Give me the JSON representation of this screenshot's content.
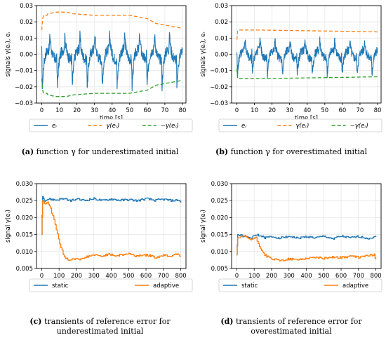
{
  "chart_data": [
    {
      "type": "line",
      "panel_label": "(a)",
      "caption": "function γ for underestimated initial",
      "xlabel": "time [s]",
      "ylabel": "signals γ(eᵣ), eᵣ",
      "xlim": [
        -3,
        82
      ],
      "ylim": [
        -0.03,
        0.03
      ],
      "xticks": [
        0,
        10,
        20,
        30,
        40,
        50,
        60,
        70,
        80
      ],
      "yticks": [
        -0.03,
        -0.02,
        -0.01,
        0.0,
        0.01,
        0.02,
        0.03
      ],
      "ytick_labels": [
        "−0.03",
        "−0.02",
        "−0.01",
        "0.00",
        "0.01",
        "0.02",
        "0.03"
      ],
      "grid": true,
      "legend_position": "below",
      "series": [
        {
          "name": "eᵣ",
          "color": "#1f77b4",
          "style": "solid",
          "kind": "oscillation",
          "period": 8.5,
          "x_start": 0,
          "x_end": 80,
          "peak_high": 0.012,
          "peak_low": -0.021,
          "base_high": 0.006,
          "base_low": -0.006
        },
        {
          "name": "γ(eᵣ)",
          "color": "#ff7f0e",
          "style": "dashed",
          "points": [
            [
              0,
              0.015
            ],
            [
              0.5,
              0.022
            ],
            [
              1,
              0.024
            ],
            [
              3,
              0.024
            ],
            [
              3.5,
              0.025
            ],
            [
              8,
              0.026
            ],
            [
              14,
              0.026
            ],
            [
              18,
              0.025
            ],
            [
              30,
              0.024
            ],
            [
              50,
              0.024
            ],
            [
              60,
              0.022
            ],
            [
              65,
              0.019
            ],
            [
              70,
              0.018
            ],
            [
              75,
              0.017
            ],
            [
              80,
              0.016
            ]
          ]
        },
        {
          "name": "−γ(eᵣ)",
          "color": "#2ca02c",
          "style": "dashed",
          "points": [
            [
              0,
              -0.015
            ],
            [
              0.5,
              -0.022
            ],
            [
              1,
              -0.024
            ],
            [
              3,
              -0.024
            ],
            [
              3.5,
              -0.025
            ],
            [
              8,
              -0.026
            ],
            [
              14,
              -0.026
            ],
            [
              18,
              -0.025
            ],
            [
              30,
              -0.024
            ],
            [
              50,
              -0.024
            ],
            [
              60,
              -0.022
            ],
            [
              65,
              -0.019
            ],
            [
              70,
              -0.018
            ],
            [
              75,
              -0.017
            ],
            [
              80,
              -0.016
            ]
          ]
        }
      ]
    },
    {
      "type": "line",
      "panel_label": "(b)",
      "caption": "function γ for overestimated initial",
      "xlabel": "time [s]",
      "ylabel": "signals γ(eᵣ), eᵣ",
      "xlim": [
        -3,
        82
      ],
      "ylim": [
        -0.03,
        0.03
      ],
      "xticks": [
        0,
        10,
        20,
        30,
        40,
        50,
        60,
        70,
        80
      ],
      "yticks": [
        -0.03,
        -0.02,
        -0.01,
        0.0,
        0.01,
        0.02,
        0.03
      ],
      "ytick_labels": [
        "−0.03",
        "−0.02",
        "−0.01",
        "0.00",
        "0.01",
        "0.02",
        "0.03"
      ],
      "grid": true,
      "legend_position": "below",
      "series": [
        {
          "name": "eᵣ",
          "color": "#1f77b4",
          "style": "solid",
          "kind": "oscillation",
          "period": 8.5,
          "x_start": 0,
          "x_end": 80,
          "peak_high": 0.009,
          "peak_low": -0.013,
          "base_high": 0.005,
          "base_low": -0.005
        },
        {
          "name": "γ(eᵣ)",
          "color": "#ff7f0e",
          "style": "dashed",
          "points": [
            [
              0,
              0.009
            ],
            [
              0.5,
              0.015
            ],
            [
              10,
              0.015
            ],
            [
              40,
              0.0145
            ],
            [
              60,
              0.0142
            ],
            [
              80,
              0.0138
            ]
          ]
        },
        {
          "name": "−γ(eᵣ)",
          "color": "#2ca02c",
          "style": "dashed",
          "points": [
            [
              0,
              -0.009
            ],
            [
              0.5,
              -0.015
            ],
            [
              10,
              -0.015
            ],
            [
              40,
              -0.0145
            ],
            [
              60,
              -0.0142
            ],
            [
              80,
              -0.0138
            ]
          ]
        }
      ]
    },
    {
      "type": "line",
      "panel_label": "(c)",
      "caption": [
        "transients of reference error for",
        "underestimated initial"
      ],
      "xlabel": "time [s]",
      "ylabel": "signal γ(eᵣ)",
      "xlim": [
        -30,
        830
      ],
      "ylim": [
        0.005,
        0.03
      ],
      "xticks": [
        0,
        100,
        200,
        300,
        400,
        500,
        600,
        700,
        800
      ],
      "yticks": [
        0.005,
        0.01,
        0.015,
        0.02,
        0.025,
        0.03
      ],
      "ytick_labels": [
        "0.005",
        "0.010",
        "0.015",
        "0.020",
        "0.025",
        "0.030"
      ],
      "grid": true,
      "legend_position": "below",
      "series": [
        {
          "name": "static",
          "color": "#1f77b4",
          "style": "solid",
          "points": [
            [
              0,
              0.015
            ],
            [
              5,
              0.0262
            ],
            [
              15,
              0.025
            ],
            [
              40,
              0.0255
            ],
            [
              80,
              0.0252
            ],
            [
              120,
              0.0256
            ],
            [
              160,
              0.025
            ],
            [
              200,
              0.0254
            ],
            [
              250,
              0.0251
            ],
            [
              300,
              0.0256
            ],
            [
              350,
              0.025
            ],
            [
              400,
              0.0255
            ],
            [
              450,
              0.0251
            ],
            [
              500,
              0.0253
            ],
            [
              550,
              0.025
            ],
            [
              600,
              0.0256
            ],
            [
              650,
              0.0251
            ],
            [
              700,
              0.0254
            ],
            [
              750,
              0.025
            ],
            [
              790,
              0.0252
            ],
            [
              800,
              0.0244
            ]
          ]
        },
        {
          "name": "adaptive",
          "color": "#ff7f0e",
          "style": "solid",
          "points": [
            [
              0,
              0.015
            ],
            [
              5,
              0.025
            ],
            [
              20,
              0.024
            ],
            [
              35,
              0.0248
            ],
            [
              50,
              0.0225
            ],
            [
              70,
              0.0195
            ],
            [
              90,
              0.015
            ],
            [
              110,
              0.011
            ],
            [
              130,
              0.0085
            ],
            [
              150,
              0.0075
            ],
            [
              175,
              0.0077
            ],
            [
              200,
              0.008
            ],
            [
              230,
              0.0077
            ],
            [
              260,
              0.0085
            ],
            [
              300,
              0.009
            ],
            [
              340,
              0.0086
            ],
            [
              380,
              0.0092
            ],
            [
              420,
              0.0088
            ],
            [
              460,
              0.009
            ],
            [
              500,
              0.0094
            ],
            [
              540,
              0.0087
            ],
            [
              580,
              0.009
            ],
            [
              620,
              0.0088
            ],
            [
              660,
              0.0082
            ],
            [
              700,
              0.009
            ],
            [
              740,
              0.0086
            ],
            [
              780,
              0.0095
            ],
            [
              800,
              0.0085
            ]
          ]
        }
      ]
    },
    {
      "type": "line",
      "panel_label": "(d)",
      "caption": [
        "transients of reference error for",
        "overestimated initial"
      ],
      "xlabel": "time [s]",
      "ylabel": "signal γ(eᵣ)",
      "xlim": [
        -30,
        830
      ],
      "ylim": [
        0.005,
        0.03
      ],
      "xticks": [
        0,
        100,
        200,
        300,
        400,
        500,
        600,
        700,
        800
      ],
      "yticks": [
        0.005,
        0.01,
        0.015,
        0.02,
        0.025,
        0.03
      ],
      "ytick_labels": [
        "0.005",
        "0.010",
        "0.015",
        "0.020",
        "0.025",
        "0.030"
      ],
      "grid": true,
      "legend_position": "below",
      "series": [
        {
          "name": "static",
          "color": "#1f77b4",
          "style": "solid",
          "points": [
            [
              0,
              0.009
            ],
            [
              5,
              0.015
            ],
            [
              40,
              0.0145
            ],
            [
              80,
              0.014
            ],
            [
              120,
              0.015
            ],
            [
              160,
              0.014
            ],
            [
              200,
              0.0144
            ],
            [
              250,
              0.014
            ],
            [
              300,
              0.0145
            ],
            [
              350,
              0.0139
            ],
            [
              400,
              0.0144
            ],
            [
              450,
              0.014
            ],
            [
              500,
              0.0145
            ],
            [
              550,
              0.0138
            ],
            [
              600,
              0.0145
            ],
            [
              650,
              0.014
            ],
            [
              700,
              0.0144
            ],
            [
              750,
              0.0139
            ],
            [
              800,
              0.0143
            ]
          ]
        },
        {
          "name": "adaptive",
          "color": "#ff7f0e",
          "style": "solid",
          "points": [
            [
              0,
              0.009
            ],
            [
              5,
              0.014
            ],
            [
              40,
              0.0145
            ],
            [
              80,
              0.0135
            ],
            [
              110,
              0.014
            ],
            [
              130,
              0.0115
            ],
            [
              160,
              0.009
            ],
            [
              200,
              0.0078
            ],
            [
              250,
              0.0073
            ],
            [
              300,
              0.0078
            ],
            [
              350,
              0.0076
            ],
            [
              400,
              0.008
            ],
            [
              450,
              0.0083
            ],
            [
              500,
              0.008
            ],
            [
              550,
              0.0084
            ],
            [
              600,
              0.0082
            ],
            [
              650,
              0.0086
            ],
            [
              700,
              0.0083
            ],
            [
              750,
              0.0088
            ],
            [
              790,
              0.009
            ],
            [
              800,
              0.0077
            ]
          ]
        }
      ]
    }
  ]
}
